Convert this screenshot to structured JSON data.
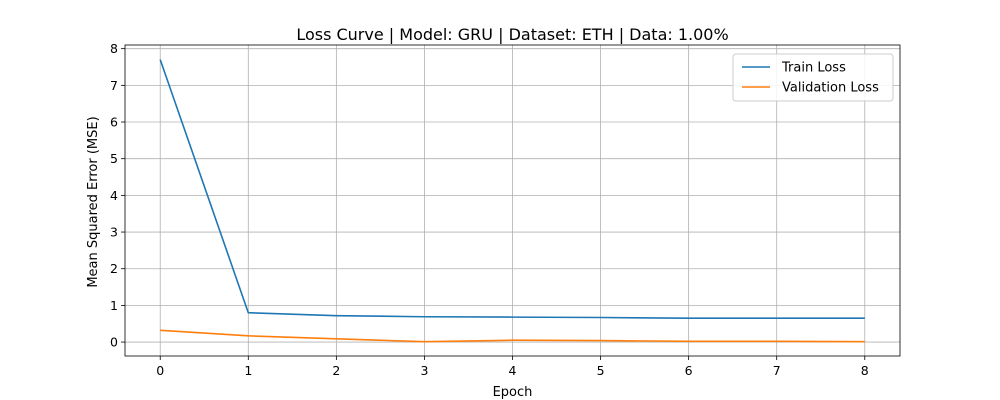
{
  "chart_data": {
    "type": "line",
    "title": "Loss Curve | Model: GRU | Dataset: ETH | Data: 1.00%",
    "xlabel": "Epoch",
    "ylabel": "Mean Squared Error (MSE)",
    "x": [
      0,
      1,
      2,
      3,
      4,
      5,
      6,
      7,
      8
    ],
    "xlim": [
      -0.4,
      8.4
    ],
    "ylim": [
      -0.38,
      8.1
    ],
    "xticks": [
      0,
      1,
      2,
      3,
      4,
      5,
      6,
      7,
      8
    ],
    "yticks": [
      0,
      1,
      2,
      3,
      4,
      5,
      6,
      7,
      8
    ],
    "grid": true,
    "legend": "top-right",
    "series": [
      {
        "name": "Train Loss",
        "color": "#1f77b4",
        "values": [
          7.7,
          0.8,
          0.72,
          0.69,
          0.68,
          0.67,
          0.65,
          0.65,
          0.65
        ]
      },
      {
        "name": "Validation Loss",
        "color": "#ff7f0e",
        "values": [
          0.32,
          0.17,
          0.09,
          0.01,
          0.05,
          0.04,
          0.02,
          0.02,
          0.01
        ]
      }
    ]
  }
}
